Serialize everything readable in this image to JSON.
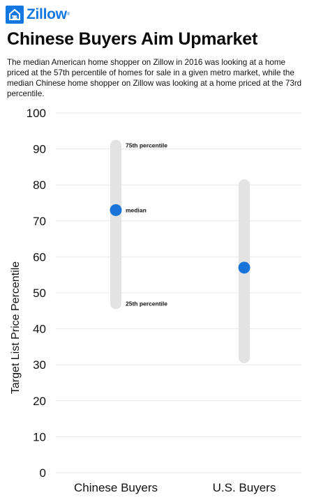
{
  "brand": {
    "name": "Zillow",
    "trademark": "®",
    "color": "#1277e1"
  },
  "header": {
    "title": "Chinese Buyers Aim Upmarket",
    "subtitle": "The median American home shopper on Zillow in 2016 was looking at a home priced at the 57th percentile of homes for sale in a given metro market, while the median Chinese home shopper on Zillow was looking at a home priced at the 73rd percentile."
  },
  "chart_data": {
    "type": "range",
    "title": "",
    "xlabel": "",
    "ylabel": "Target List Price Percentile",
    "ylim": [
      0,
      100
    ],
    "yticks": [
      0,
      10,
      20,
      30,
      40,
      50,
      60,
      70,
      80,
      90,
      100
    ],
    "grid": true,
    "categories": [
      "Chinese Buyers",
      "U.S. Buyers"
    ],
    "series": [
      {
        "category": "Chinese Buyers",
        "p25": 47,
        "median": 73,
        "p75": 91
      },
      {
        "category": "U.S. Buyers",
        "p25": 32,
        "median": 57,
        "p75": 80
      }
    ],
    "annotations": [
      {
        "text": "75th percentile",
        "category": "Chinese Buyers",
        "value": 91
      },
      {
        "text": "median",
        "category": "Chinese Buyers",
        "value": 73
      },
      {
        "text": "25th percentile",
        "category": "Chinese Buyers",
        "value": 47
      }
    ],
    "colors": {
      "range": "#e3e3e3",
      "median": "#1a73d9",
      "grid": "#e8e8e8"
    }
  }
}
